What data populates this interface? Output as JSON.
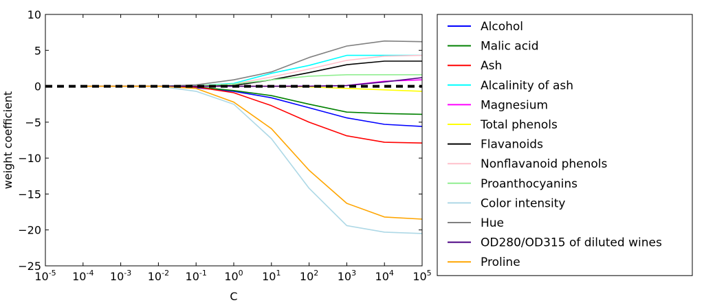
{
  "chart_data": {
    "type": "line",
    "xlabel": "C",
    "ylabel": "weight coefficient",
    "xscale": "log",
    "x": [
      -4,
      -3,
      -2,
      -1,
      0,
      1,
      2,
      3,
      4,
      5
    ],
    "xlim": [
      -5,
      5
    ],
    "ylim": [
      -25,
      10
    ],
    "xtick_base": "10",
    "xtick_exponents": [
      "-5",
      "-4",
      "-3",
      "-2",
      "-1",
      "0",
      "1",
      "2",
      "3",
      "4",
      "5"
    ],
    "xtick_values": [
      -5,
      -4,
      -3,
      -2,
      -1,
      0,
      1,
      2,
      3,
      4,
      5
    ],
    "ytick_labels": [
      "10",
      "5",
      "0",
      "−5",
      "−10",
      "−15",
      "−20",
      "−25"
    ],
    "ytick_values": [
      10,
      5,
      0,
      -5,
      -10,
      -15,
      -20,
      -25
    ],
    "reference_line": {
      "y": 0,
      "style": "dashed",
      "color": "#000000"
    },
    "legend_position": "right",
    "series": [
      {
        "name": "Alcohol",
        "color": "#0000ff",
        "values": [
          0,
          0,
          0,
          -0.2,
          -0.7,
          -1.6,
          -3.0,
          -4.4,
          -5.3,
          -5.6
        ]
      },
      {
        "name": "Malic acid",
        "color": "#008000",
        "values": [
          0,
          0,
          0,
          -0.1,
          -0.6,
          -1.3,
          -2.5,
          -3.6,
          -3.8,
          -3.9
        ]
      },
      {
        "name": "Ash",
        "color": "#ff0000",
        "values": [
          0,
          0,
          0,
          -0.1,
          -0.9,
          -2.7,
          -5.0,
          -6.9,
          -7.8,
          -7.9
        ]
      },
      {
        "name": "Alcalinity of ash",
        "color": "#00ffff",
        "values": [
          0,
          0,
          0,
          0.1,
          0.4,
          1.8,
          2.9,
          4.3,
          4.3,
          4.3
        ]
      },
      {
        "name": "Magnesium",
        "color": "#ff00ff",
        "values": [
          0,
          0,
          0,
          0,
          0,
          0,
          0,
          0.1,
          0.7,
          0.9
        ]
      },
      {
        "name": "Total phenols",
        "color": "#ffff00",
        "values": [
          0,
          0,
          0,
          0,
          0,
          0,
          -0.1,
          -0.3,
          -0.5,
          -0.7
        ]
      },
      {
        "name": "Flavanoids",
        "color": "#000000",
        "values": [
          0,
          0,
          0,
          0,
          0.1,
          0.9,
          1.9,
          3.0,
          3.5,
          3.5
        ]
      },
      {
        "name": "Nonflavanoid phenols",
        "color": "#ffc0cb",
        "values": [
          0,
          0,
          0,
          0.1,
          0.3,
          1.3,
          2.4,
          3.6,
          4.2,
          4.3
        ]
      },
      {
        "name": "Proanthocyanins",
        "color": "#90ee90",
        "values": [
          0,
          0,
          0,
          0.1,
          0.3,
          0.9,
          1.4,
          1.6,
          1.6,
          1.6
        ]
      },
      {
        "name": "Color intensity",
        "color": "#add8e6",
        "values": [
          0,
          0,
          0,
          -0.7,
          -2.5,
          -7.3,
          -14.2,
          -19.4,
          -20.3,
          -20.5
        ]
      },
      {
        "name": "Hue",
        "color": "#808080",
        "values": [
          0,
          0,
          0,
          0.2,
          0.9,
          2.0,
          4.0,
          5.6,
          6.3,
          6.2
        ]
      },
      {
        "name": "OD280/OD315 of diluted wines",
        "color": "#4b0082",
        "values": [
          0,
          0,
          0,
          0,
          0,
          0,
          0,
          0.1,
          0.6,
          1.2
        ]
      },
      {
        "name": "Proline",
        "color": "#ffa500",
        "values": [
          0,
          0,
          0,
          -0.3,
          -2.2,
          -5.9,
          -11.7,
          -16.3,
          -18.2,
          -18.5
        ]
      }
    ]
  }
}
